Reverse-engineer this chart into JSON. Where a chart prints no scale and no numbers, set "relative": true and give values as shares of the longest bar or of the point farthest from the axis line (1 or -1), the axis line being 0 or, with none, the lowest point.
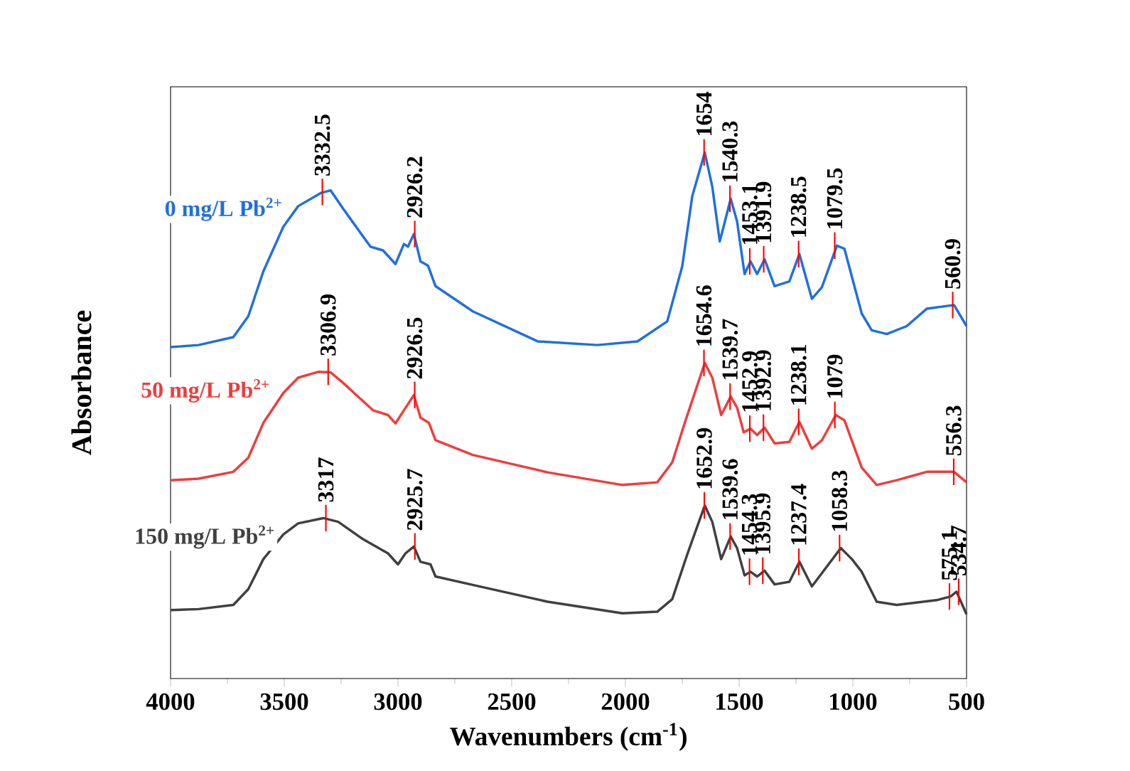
{
  "chart_data": {
    "type": "line",
    "relative": true,
    "xlabel": "Wavenumbers (cm$^{-1}$)",
    "ylabel": "Absorbance",
    "xlim": [
      4000,
      500
    ],
    "xticks": [
      4000,
      3500,
      3000,
      2500,
      2000,
      1500,
      1000,
      500
    ],
    "grid": false,
    "legend": false,
    "line_style": "solid",
    "series": [
      {
        "name": "0 mg/L Pb$^{2+}$",
        "color": "#1f6fe0",
        "x": [
          4000,
          3877,
          3724,
          3658,
          3592,
          3504,
          3439,
          3340,
          3296,
          3241,
          3121,
          3066,
          3011,
          2974,
          2956,
          2930,
          2901,
          2868,
          2835,
          2671,
          2386,
          2123,
          1947,
          1816,
          1750,
          1706,
          1651,
          1618,
          1585,
          1537,
          1509,
          1476,
          1450,
          1421,
          1388,
          1344,
          1279,
          1235,
          1180,
          1136,
          1070,
          1037,
          961,
          917,
          851,
          763,
          675,
          555,
          500
        ],
        "values": [
          0.63,
          0.634,
          0.649,
          0.689,
          0.774,
          0.859,
          0.898,
          0.923,
          0.928,
          0.893,
          0.821,
          0.814,
          0.788,
          0.826,
          0.821,
          0.845,
          0.793,
          0.785,
          0.746,
          0.698,
          0.641,
          0.634,
          0.641,
          0.679,
          0.784,
          0.917,
          1.0,
          0.935,
          0.831,
          0.912,
          0.869,
          0.769,
          0.793,
          0.769,
          0.797,
          0.746,
          0.755,
          0.807,
          0.722,
          0.744,
          0.823,
          0.817,
          0.694,
          0.662,
          0.655,
          0.67,
          0.703,
          0.71,
          0.67
        ]
      },
      {
        "name": "50 mg/L Pb$^{2+}$",
        "color": "#f03c3c",
        "x": [
          4000,
          3877,
          3724,
          3658,
          3592,
          3504,
          3439,
          3351,
          3296,
          3241,
          3110,
          3044,
          3011,
          2974,
          2930,
          2901,
          2864,
          2835,
          2671,
          2342,
          2013,
          1860,
          1794,
          1739,
          1651,
          1618,
          1579,
          1537,
          1509,
          1480,
          1450,
          1421,
          1388,
          1344,
          1279,
          1235,
          1180,
          1136,
          1075,
          1037,
          961,
          895,
          807,
          675,
          555,
          500
        ],
        "values": [
          0.377,
          0.38,
          0.393,
          0.42,
          0.486,
          0.543,
          0.572,
          0.583,
          0.582,
          0.562,
          0.51,
          0.501,
          0.485,
          0.51,
          0.539,
          0.496,
          0.486,
          0.453,
          0.425,
          0.392,
          0.368,
          0.373,
          0.411,
          0.486,
          0.6,
          0.572,
          0.501,
          0.536,
          0.515,
          0.468,
          0.475,
          0.463,
          0.477,
          0.447,
          0.45,
          0.488,
          0.437,
          0.453,
          0.501,
          0.491,
          0.401,
          0.368,
          0.377,
          0.393,
          0.393,
          0.373
        ]
      },
      {
        "name": "150 mg/L Pb$^{2+}$",
        "color": "#404040",
        "x": [
          4000,
          3877,
          3724,
          3658,
          3592,
          3504,
          3439,
          3329,
          3263,
          3154,
          3044,
          3000,
          2967,
          2930,
          2901,
          2857,
          2835,
          2671,
          2342,
          2013,
          1860,
          1794,
          1728,
          1651,
          1618,
          1579,
          1537,
          1509,
          1476,
          1450,
          1421,
          1388,
          1344,
          1279,
          1235,
          1180,
          1114,
          1053,
          1004,
          961,
          895,
          807,
          632,
          570,
          544,
          500
        ],
        "values": [
          0.13,
          0.132,
          0.14,
          0.17,
          0.227,
          0.274,
          0.295,
          0.305,
          0.298,
          0.265,
          0.238,
          0.217,
          0.238,
          0.251,
          0.222,
          0.217,
          0.194,
          0.178,
          0.146,
          0.124,
          0.127,
          0.151,
          0.236,
          0.329,
          0.298,
          0.227,
          0.27,
          0.248,
          0.196,
          0.203,
          0.194,
          0.205,
          0.179,
          0.184,
          0.222,
          0.175,
          0.213,
          0.248,
          0.227,
          0.203,
          0.146,
          0.14,
          0.149,
          0.156,
          0.165,
          0.122
        ]
      }
    ],
    "annotations": [
      {
        "text": "3332.5",
        "x": 3332.5,
        "y": 0.925
      },
      {
        "text": "2926.2",
        "x": 2926.2,
        "y": 0.845
      },
      {
        "text": "1654",
        "x": 1654,
        "y": 1.0
      },
      {
        "text": "1540.3",
        "x": 1540.3,
        "y": 0.912
      },
      {
        "text": "1453.1",
        "x": 1453.1,
        "y": 0.793
      },
      {
        "text": "1391.9",
        "x": 1391.9,
        "y": 0.797
      },
      {
        "text": "1238.5",
        "x": 1238.5,
        "y": 0.807
      },
      {
        "text": "1079.5",
        "x": 1079.5,
        "y": 0.823
      },
      {
        "text": "560.9",
        "x": 560.9,
        "y": 0.71
      },
      {
        "text": "3306.9",
        "x": 3306.9,
        "y": 0.583
      },
      {
        "text": "2926.5",
        "x": 2926.5,
        "y": 0.539
      },
      {
        "text": "1654.6",
        "x": 1654.6,
        "y": 0.6
      },
      {
        "text": "1539.7",
        "x": 1539.7,
        "y": 0.536
      },
      {
        "text": "1452.9",
        "x": 1452.9,
        "y": 0.475
      },
      {
        "text": "1392.9",
        "x": 1392.9,
        "y": 0.477
      },
      {
        "text": "1238.1",
        "x": 1238.1,
        "y": 0.488
      },
      {
        "text": "1079",
        "x": 1079,
        "y": 0.501
      },
      {
        "text": "556.3",
        "x": 556.3,
        "y": 0.393
      },
      {
        "text": "3317",
        "x": 3317,
        "y": 0.305
      },
      {
        "text": "2925.7",
        "x": 2925.7,
        "y": 0.251
      },
      {
        "text": "1652.9",
        "x": 1652.9,
        "y": 0.329
      },
      {
        "text": "1539.6",
        "x": 1539.6,
        "y": 0.27
      },
      {
        "text": "1454.3",
        "x": 1454.3,
        "y": 0.203
      },
      {
        "text": "1395.9",
        "x": 1395.9,
        "y": 0.205
      },
      {
        "text": "1237.4",
        "x": 1237.4,
        "y": 0.222
      },
      {
        "text": "1058.3",
        "x": 1058.3,
        "y": 0.248
      },
      {
        "text": "575.1",
        "x": 575.1,
        "y": 0.156
      },
      {
        "text": "534.7",
        "x": 534.7,
        "y": 0.165
      }
    ]
  }
}
